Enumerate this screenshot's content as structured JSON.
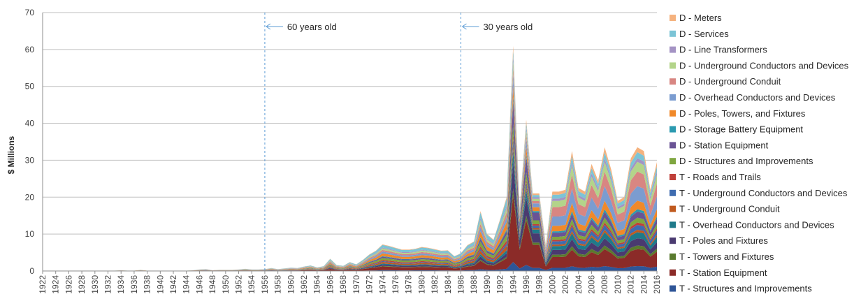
{
  "chart_data": {
    "type": "area",
    "stacked": true,
    "title": "",
    "ylabel": "$ Millions",
    "xlabel": "",
    "ylim": [
      0,
      70
    ],
    "yticks": [
      0,
      10,
      20,
      30,
      40,
      50,
      60,
      70
    ],
    "grid": "horizontal",
    "legend_position": "right",
    "x": [
      1922,
      1923,
      1924,
      1925,
      1926,
      1927,
      1928,
      1929,
      1930,
      1931,
      1932,
      1933,
      1934,
      1935,
      1936,
      1937,
      1938,
      1939,
      1940,
      1941,
      1942,
      1943,
      1944,
      1945,
      1946,
      1947,
      1948,
      1949,
      1950,
      1951,
      1952,
      1953,
      1954,
      1955,
      1956,
      1957,
      1958,
      1959,
      1960,
      1961,
      1962,
      1963,
      1964,
      1965,
      1966,
      1967,
      1968,
      1969,
      1970,
      1971,
      1972,
      1973,
      1974,
      1975,
      1976,
      1977,
      1978,
      1979,
      1980,
      1981,
      1982,
      1983,
      1984,
      1985,
      1986,
      1987,
      1988,
      1989,
      1990,
      1991,
      1992,
      1993,
      1994,
      1995,
      1996,
      1997,
      1998,
      1999,
      2000,
      2001,
      2002,
      2003,
      2004,
      2005,
      2006,
      2007,
      2008,
      2009,
      2010,
      2011,
      2012,
      2013,
      2014,
      2015,
      2016
    ],
    "xtick_labels": [
      "1922",
      "1924",
      "1926",
      "1928",
      "1930",
      "1932",
      "1934",
      "1936",
      "1938",
      "1940",
      "1942",
      "1944",
      "1946",
      "1948",
      "1950",
      "1952",
      "1954",
      "1956",
      "1958",
      "1960",
      "1962",
      "1964",
      "1966",
      "1968",
      "1970",
      "1972",
      "1974",
      "1976",
      "1978",
      "1980",
      "1982",
      "1984",
      "1986",
      "1988",
      "1990",
      "1992",
      "1994",
      "1996",
      "1998",
      "2000",
      "2002",
      "2004",
      "2006",
      "2008",
      "2010",
      "2012",
      "2014",
      "2016"
    ],
    "totals": [
      0.1,
      0.1,
      0.1,
      0.1,
      0.1,
      0.1,
      0.1,
      0.1,
      0.1,
      0.1,
      0.1,
      0.1,
      0.2,
      0.1,
      0.1,
      0.3,
      0.1,
      0.1,
      0.1,
      0.1,
      0.1,
      0.1,
      0.1,
      0.2,
      0.4,
      0.5,
      0.2,
      0.3,
      0.3,
      0.3,
      0.4,
      0.6,
      0.4,
      0.4,
      0.5,
      0.8,
      0.5,
      0.7,
      0.9,
      0.8,
      1.2,
      1.5,
      1.0,
      1.3,
      3.3,
      1.6,
      1.4,
      2.4,
      1.8,
      3.0,
      4.5,
      5.5,
      7.2,
      6.8,
      6.3,
      5.8,
      5.8,
      6.0,
      6.5,
      6.3,
      5.9,
      5.5,
      5.6,
      4.0,
      4.8,
      7.0,
      8.0,
      16.2,
      10.0,
      8.5,
      14.0,
      20.0,
      61.0,
      17.0,
      41.0,
      21.0,
      21.0,
      7.0,
      21.5,
      21.5,
      22.0,
      32.5,
      22.5,
      21.5,
      29.0,
      24.5,
      33.5,
      27.5,
      19.0,
      20.0,
      30.5,
      33.5,
      32.5,
      22.0,
      29.5
    ],
    "series": [
      {
        "name": "T - Structures and Improvements",
        "color": "#2e5597"
      },
      {
        "name": "T - Station Equipment",
        "color": "#8b2b28"
      },
      {
        "name": "T - Towers and Fixtures",
        "color": "#5a7a2e"
      },
      {
        "name": "T - Poles and Fixtures",
        "color": "#4a3a70"
      },
      {
        "name": "T - Overhead Conductors and Devices",
        "color": "#1f7a8a"
      },
      {
        "name": "T - Underground Conduit",
        "color": "#c05a1f"
      },
      {
        "name": "T - Underground Conductors and Devices",
        "color": "#3f6cb0"
      },
      {
        "name": "T - Roads and Trails",
        "color": "#c0403a"
      },
      {
        "name": "D - Structures and Improvements",
        "color": "#7fa640"
      },
      {
        "name": "D - Station Equipment",
        "color": "#6a5495"
      },
      {
        "name": "D - Storage Battery Equipment",
        "color": "#2b9ab0"
      },
      {
        "name": "D - Poles, Towers, and Fixtures",
        "color": "#f0892a"
      },
      {
        "name": "D - Overhead Conductors and Devices",
        "color": "#7b9cd0"
      },
      {
        "name": "D - Underground Conduit",
        "color": "#d88682"
      },
      {
        "name": "D - Underground Conductors and Devices",
        "color": "#b3d48a"
      },
      {
        "name": "D - Line Transformers",
        "color": "#a493c4"
      },
      {
        "name": "D - Services",
        "color": "#7cc4d6"
      },
      {
        "name": "D - Meters",
        "color": "#f5b27e"
      }
    ],
    "shares": [
      [
        0.03,
        0.14,
        0.02,
        0.05,
        0.04,
        0.06,
        0.03,
        0.04,
        0.08,
        0.05,
        0.02,
        0.1,
        0.07,
        0.06,
        0.06,
        0.03,
        0.1,
        0.02
      ],
      [
        0.04,
        0.3,
        0.03,
        0.12,
        0.05,
        0.02,
        0.03,
        0.02,
        0.05,
        0.1,
        0.02,
        0.05,
        0.05,
        0.03,
        0.03,
        0.02,
        0.03,
        0.02
      ],
      [
        0.04,
        0.14,
        0.03,
        0.06,
        0.05,
        0.02,
        0.04,
        0.02,
        0.04,
        0.05,
        0.02,
        0.07,
        0.12,
        0.12,
        0.08,
        0.03,
        0.05,
        0.04
      ]
    ],
    "annotations": [
      {
        "x": 1956,
        "text": "60 years old"
      },
      {
        "x": 1986,
        "text": "30 years old"
      }
    ]
  }
}
